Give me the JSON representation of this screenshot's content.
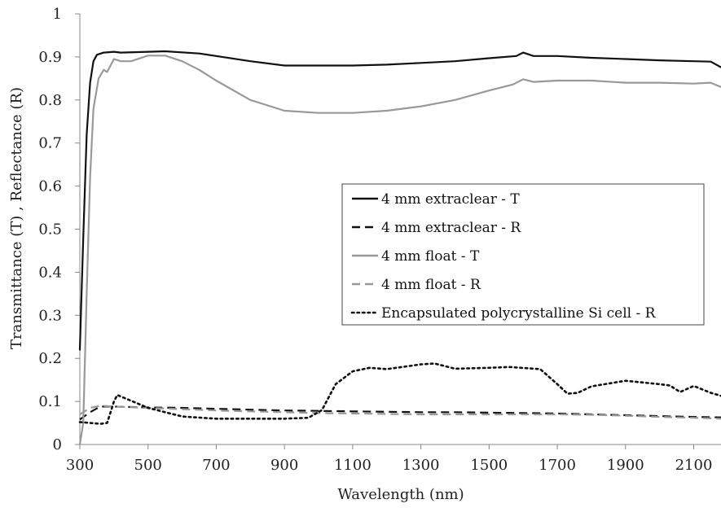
{
  "chart_data": {
    "type": "line",
    "title": "",
    "xlabel": "Wavelength (nm)",
    "ylabel": "Transmittance (T) , Reflectance  (R)",
    "xlim": [
      300,
      2180
    ],
    "ylim": [
      0,
      1
    ],
    "x_ticks": [
      "300",
      "500",
      "700",
      "900",
      "1100",
      "1300",
      "1500",
      "1700",
      "1900",
      "2100"
    ],
    "y_ticks": [
      "0",
      "0.1",
      "0.2",
      "0.3",
      "0.4",
      "0.5",
      "0.6",
      "0.7",
      "0.8",
      "0.9",
      "1"
    ],
    "grid": false,
    "legend_position": "center-right",
    "series": [
      {
        "name": "4 mm extraclear - T",
        "color": "#111111",
        "dash": "solid",
        "points": [
          [
            300,
            0.22
          ],
          [
            310,
            0.48
          ],
          [
            320,
            0.72
          ],
          [
            330,
            0.84
          ],
          [
            340,
            0.89
          ],
          [
            350,
            0.905
          ],
          [
            370,
            0.91
          ],
          [
            400,
            0.912
          ],
          [
            420,
            0.91
          ],
          [
            500,
            0.912
          ],
          [
            550,
            0.913
          ],
          [
            650,
            0.908
          ],
          [
            700,
            0.902
          ],
          [
            800,
            0.89
          ],
          [
            900,
            0.88
          ],
          [
            1000,
            0.88
          ],
          [
            1100,
            0.88
          ],
          [
            1200,
            0.882
          ],
          [
            1300,
            0.886
          ],
          [
            1400,
            0.89
          ],
          [
            1500,
            0.897
          ],
          [
            1580,
            0.902
          ],
          [
            1600,
            0.91
          ],
          [
            1630,
            0.902
          ],
          [
            1700,
            0.902
          ],
          [
            1800,
            0.898
          ],
          [
            1900,
            0.895
          ],
          [
            2000,
            0.892
          ],
          [
            2100,
            0.89
          ],
          [
            2150,
            0.889
          ],
          [
            2180,
            0.876
          ]
        ]
      },
      {
        "name": "4 mm extraclear - R",
        "color": "#111111",
        "dash": "dashed",
        "points": [
          [
            300,
            0.058
          ],
          [
            330,
            0.075
          ],
          [
            360,
            0.088
          ],
          [
            400,
            0.088
          ],
          [
            500,
            0.086
          ],
          [
            600,
            0.085
          ],
          [
            700,
            0.083
          ],
          [
            800,
            0.081
          ],
          [
            900,
            0.079
          ],
          [
            1000,
            0.078
          ],
          [
            1100,
            0.077
          ],
          [
            1200,
            0.076
          ],
          [
            1300,
            0.075
          ],
          [
            1400,
            0.075
          ],
          [
            1500,
            0.074
          ],
          [
            1600,
            0.073
          ],
          [
            1700,
            0.072
          ],
          [
            1800,
            0.07
          ],
          [
            1900,
            0.068
          ],
          [
            2000,
            0.066
          ],
          [
            2100,
            0.064
          ],
          [
            2180,
            0.063
          ]
        ]
      },
      {
        "name": "4 mm float - T",
        "color": "#999999",
        "dash": "solid",
        "points": [
          [
            300,
            0.0
          ],
          [
            310,
            0.05
          ],
          [
            320,
            0.35
          ],
          [
            330,
            0.62
          ],
          [
            340,
            0.78
          ],
          [
            355,
            0.85
          ],
          [
            370,
            0.87
          ],
          [
            380,
            0.865
          ],
          [
            400,
            0.895
          ],
          [
            420,
            0.89
          ],
          [
            450,
            0.89
          ],
          [
            500,
            0.903
          ],
          [
            550,
            0.903
          ],
          [
            600,
            0.89
          ],
          [
            650,
            0.87
          ],
          [
            700,
            0.845
          ],
          [
            800,
            0.8
          ],
          [
            900,
            0.775
          ],
          [
            1000,
            0.77
          ],
          [
            1100,
            0.77
          ],
          [
            1200,
            0.775
          ],
          [
            1300,
            0.785
          ],
          [
            1400,
            0.8
          ],
          [
            1500,
            0.822
          ],
          [
            1570,
            0.836
          ],
          [
            1600,
            0.848
          ],
          [
            1630,
            0.842
          ],
          [
            1700,
            0.845
          ],
          [
            1800,
            0.845
          ],
          [
            1900,
            0.84
          ],
          [
            2000,
            0.84
          ],
          [
            2100,
            0.838
          ],
          [
            2150,
            0.84
          ],
          [
            2180,
            0.83
          ]
        ]
      },
      {
        "name": "4 mm float - R",
        "color": "#999999",
        "dash": "dashed",
        "points": [
          [
            300,
            0.07
          ],
          [
            330,
            0.085
          ],
          [
            360,
            0.09
          ],
          [
            400,
            0.088
          ],
          [
            500,
            0.085
          ],
          [
            600,
            0.082
          ],
          [
            700,
            0.079
          ],
          [
            800,
            0.077
          ],
          [
            900,
            0.075
          ],
          [
            1000,
            0.073
          ],
          [
            1100,
            0.072
          ],
          [
            1200,
            0.071
          ],
          [
            1300,
            0.07
          ],
          [
            1400,
            0.07
          ],
          [
            1500,
            0.07
          ],
          [
            1600,
            0.07
          ],
          [
            1700,
            0.07
          ],
          [
            1800,
            0.069
          ],
          [
            1900,
            0.067
          ],
          [
            2000,
            0.064
          ],
          [
            2100,
            0.062
          ],
          [
            2180,
            0.06
          ]
        ]
      },
      {
        "name": "Encapsulated polycrystalline Si cell - R",
        "color": "#111111",
        "dash": "dotted",
        "points": [
          [
            300,
            0.052
          ],
          [
            330,
            0.05
          ],
          [
            360,
            0.048
          ],
          [
            380,
            0.05
          ],
          [
            400,
            0.1
          ],
          [
            410,
            0.115
          ],
          [
            440,
            0.105
          ],
          [
            500,
            0.085
          ],
          [
            600,
            0.065
          ],
          [
            700,
            0.06
          ],
          [
            800,
            0.06
          ],
          [
            900,
            0.06
          ],
          [
            970,
            0.062
          ],
          [
            1010,
            0.08
          ],
          [
            1050,
            0.14
          ],
          [
            1100,
            0.17
          ],
          [
            1150,
            0.178
          ],
          [
            1200,
            0.175
          ],
          [
            1300,
            0.186
          ],
          [
            1340,
            0.188
          ],
          [
            1400,
            0.176
          ],
          [
            1500,
            0.178
          ],
          [
            1560,
            0.18
          ],
          [
            1650,
            0.175
          ],
          [
            1700,
            0.14
          ],
          [
            1730,
            0.118
          ],
          [
            1760,
            0.12
          ],
          [
            1800,
            0.135
          ],
          [
            1900,
            0.148
          ],
          [
            2000,
            0.14
          ],
          [
            2030,
            0.137
          ],
          [
            2060,
            0.122
          ],
          [
            2100,
            0.136
          ],
          [
            2150,
            0.12
          ],
          [
            2180,
            0.113
          ]
        ]
      }
    ]
  }
}
